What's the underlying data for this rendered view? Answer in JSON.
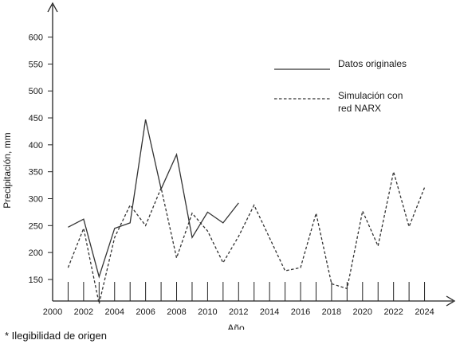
{
  "chart_data": {
    "type": "line",
    "xlabel": "Año",
    "ylabel": "Precipitación, mm",
    "xlim": [
      2000,
      2025
    ],
    "ylim": [
      110,
      660
    ],
    "x_ticks": [
      2000,
      2002,
      2004,
      2006,
      2008,
      2010,
      2012,
      2014,
      2016,
      2018,
      2020,
      2022,
      2024
    ],
    "y_ticks": [
      150,
      200,
      250,
      300,
      350,
      400,
      450,
      500,
      550,
      600
    ],
    "grid": false,
    "legend_position": "top-right",
    "series": [
      {
        "name": "Datos originales",
        "style": "solid",
        "x": [
          2001,
          2002,
          2003,
          2004,
          2005,
          2006,
          2007,
          2008,
          2009,
          2010,
          2011,
          2012
        ],
        "y": [
          247,
          262,
          155,
          245,
          255,
          447,
          318,
          382,
          228,
          275,
          255,
          292
        ]
      },
      {
        "name": "Simulación con red NARX",
        "style": "dashed",
        "x": [
          2001,
          2002,
          2003,
          2004,
          2005,
          2006,
          2007,
          2008,
          2009,
          2010,
          2011,
          2012,
          2013,
          2014,
          2015,
          2016,
          2017,
          2018,
          2019,
          2020,
          2021,
          2022,
          2023,
          2024
        ],
        "y": [
          172,
          245,
          105,
          228,
          288,
          250,
          320,
          190,
          273,
          240,
          181,
          230,
          288,
          227,
          166,
          172,
          273,
          142,
          133,
          277,
          212,
          350,
          248,
          321
        ]
      }
    ]
  },
  "legend": {
    "entries": [
      "Datos originales",
      "Simulación con",
      "red NARX"
    ]
  },
  "footnote": "* Ilegibilidad de origen"
}
